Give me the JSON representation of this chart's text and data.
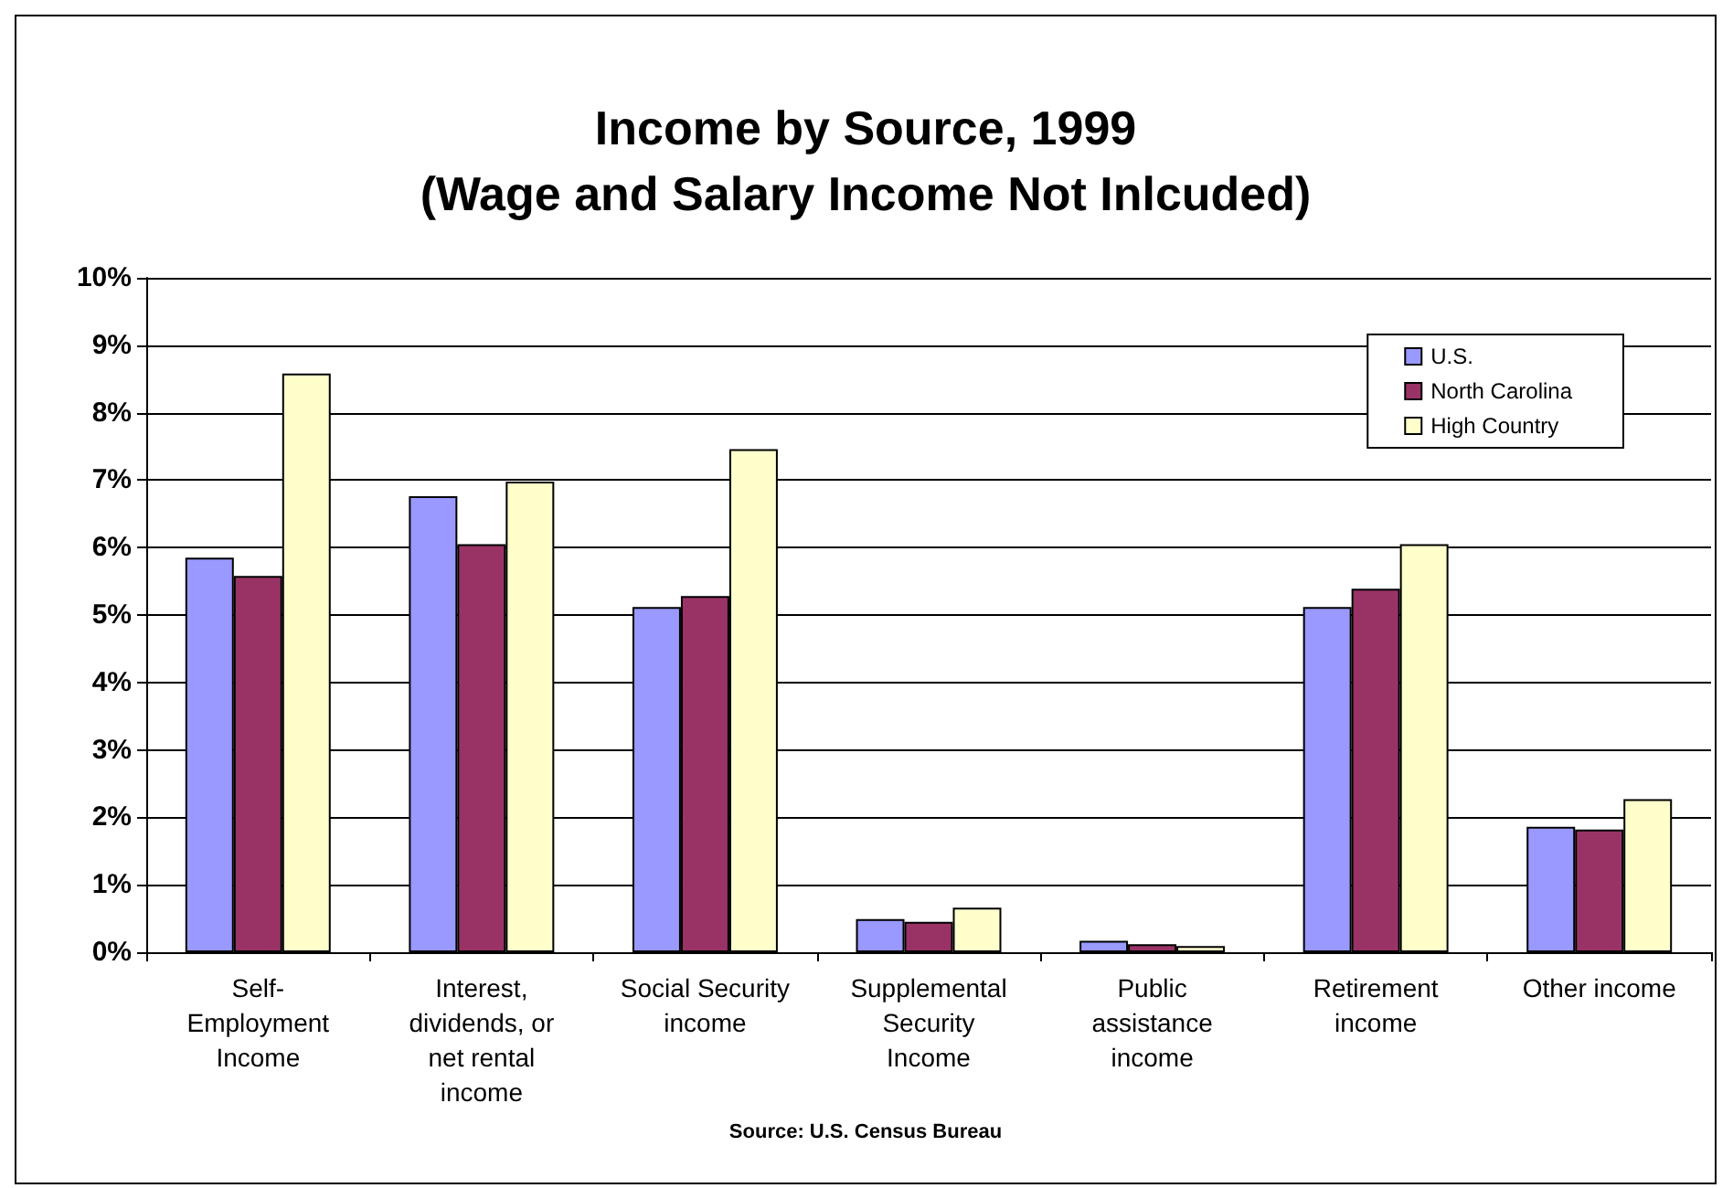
{
  "chart_data": {
    "type": "bar",
    "title": "Income by Source, 1999\n(Wage and Salary Income Not Inlcuded)",
    "categories": [
      "Self-\nEmployment\nIncome",
      "Interest,\ndividends, or\nnet rental\nincome",
      "Social Security\nincome",
      "Supplemental\nSecurity\nIncome",
      "Public\nassistance\nincome",
      "Retirement\nincome",
      "Other income"
    ],
    "series": [
      {
        "name": "U.S.",
        "color": "#9999ff",
        "values": [
          5.85,
          6.76,
          5.12,
          0.49,
          0.17,
          5.12,
          1.86
        ]
      },
      {
        "name": "North Carolina",
        "color": "#993366",
        "values": [
          5.58,
          6.05,
          5.28,
          0.45,
          0.12,
          5.39,
          1.82
        ]
      },
      {
        "name": "High Country",
        "color": "#ffffcc",
        "values": [
          8.58,
          6.98,
          7.46,
          0.66,
          0.09,
          6.05,
          2.27
        ]
      }
    ],
    "ylim": [
      0,
      10
    ],
    "yticks": [
      {
        "value": 0,
        "label": "0%"
      },
      {
        "value": 1,
        "label": "1%"
      },
      {
        "value": 2,
        "label": "2%"
      },
      {
        "value": 3,
        "label": "3%"
      },
      {
        "value": 4,
        "label": "4%"
      },
      {
        "value": 5,
        "label": "5%"
      },
      {
        "value": 6,
        "label": "6%"
      },
      {
        "value": 7,
        "label": "7%"
      },
      {
        "value": 8,
        "label": "8%"
      },
      {
        "value": 9,
        "label": "9%"
      },
      {
        "value": 10,
        "label": "10%"
      }
    ],
    "grid": "y",
    "legend": "top right",
    "annotations": [
      "Source: U.S. Census Bureau"
    ]
  }
}
